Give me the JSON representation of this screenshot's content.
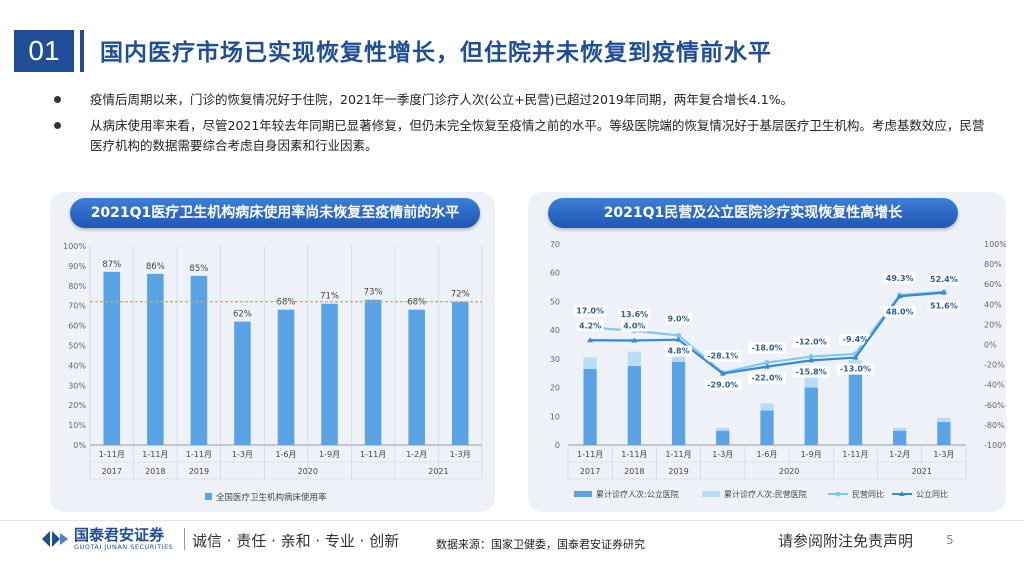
{
  "header": {
    "number": "01",
    "title": "国内医疗市场已实现恢复性增长，但住院并未恢复到疫情前水平"
  },
  "bullets": [
    "疫情后周期以来，门诊的恢复情况好于住院，2021年一季度门诊疗人次(公立+民营)已超过2019年同期，两年复合增长4.1%。",
    "从病床使用率来看，尽管2021年较去年同期已显著修复，但仍未完全恢复至疫情之前的水平。等级医院端的恢复情况好于基层医疗卫生机构。考虑基数效应，民营医疗机构的数据需要综合考虑自身因素和行业因素。"
  ],
  "colors": {
    "primary": "#1f4e96",
    "bar": "#5aa4e6",
    "bar_light": "#b8dcf4",
    "line_light": "#7ccbee",
    "line_dark": "#3a86d6",
    "ref_line": "#e8a33c"
  },
  "chart_data": [
    {
      "type": "bar",
      "title": "2021Q1医疗卫生机构病床使用率尚未恢复至疫情前的水平",
      "categories": [
        "1-11月",
        "1-11月",
        "1-11月",
        "1-3月",
        "1-6月",
        "1-9月",
        "1-11月",
        "1-2月",
        "1-3月"
      ],
      "year_groups": [
        {
          "label": "2017",
          "span": [
            0,
            0
          ]
        },
        {
          "label": "2018",
          "span": [
            1,
            1
          ]
        },
        {
          "label": "2019",
          "span": [
            2,
            2
          ]
        },
        {
          "label": "2020",
          "span": [
            3,
            6
          ]
        },
        {
          "label": "2021",
          "span": [
            7,
            8
          ]
        }
      ],
      "values": [
        87,
        86,
        85,
        62,
        68,
        71,
        73,
        68,
        72
      ],
      "value_labels": [
        "87%",
        "86%",
        "85%",
        "62%",
        "68%",
        "71%",
        "73%",
        "68%",
        "72%"
      ],
      "reference_line": 72,
      "ylim": [
        0,
        100
      ],
      "yticks": [
        "0%",
        "10%",
        "20%",
        "30%",
        "40%",
        "50%",
        "60%",
        "70%",
        "80%",
        "90%",
        "100%"
      ],
      "legend": [
        "全国医疗卫生机构病床使用率"
      ]
    },
    {
      "type": "bar",
      "title": "2021Q1民营及公立医院诊疗实现恢复性高增长",
      "categories": [
        "1-11月",
        "1-11月",
        "1-11月",
        "1-3月",
        "1-6月",
        "1-9月",
        "1-11月",
        "1-2月",
        "1-3月"
      ],
      "year_groups": [
        {
          "label": "2017",
          "span": [
            0,
            0
          ]
        },
        {
          "label": "2018",
          "span": [
            1,
            1
          ]
        },
        {
          "label": "2019",
          "span": [
            2,
            2
          ]
        },
        {
          "label": "2020",
          "span": [
            3,
            6
          ]
        },
        {
          "label": "2021",
          "span": [
            7,
            8
          ]
        }
      ],
      "series": [
        {
          "name": "累计诊疗人次:公立医院",
          "kind": "bar",
          "values": [
            26.5,
            27.5,
            29,
            5,
            12,
            20,
            25,
            5,
            8
          ]
        },
        {
          "name": "累计诊疗人次:民营医院",
          "kind": "bar_stack",
          "values": [
            4,
            5,
            5,
            1,
            2.5,
            3.5,
            4.5,
            1,
            1.5
          ]
        },
        {
          "name": "民营同比",
          "kind": "line",
          "axis": "right",
          "values": [
            17.0,
            13.6,
            9.0,
            -28.1,
            -18.0,
            -12.0,
            -9.4,
            49.3,
            52.4
          ],
          "labels": [
            "17.0%",
            "13.6%",
            "9.0%",
            "-28.1%",
            "-18.0%",
            "-12.0%",
            "-9.4%",
            "49.3%",
            "52.4%"
          ]
        },
        {
          "name": "公立同比",
          "kind": "line",
          "axis": "right",
          "values": [
            4.2,
            4.0,
            4.8,
            -29.0,
            -22.0,
            -15.8,
            -13.0,
            48.0,
            51.6
          ],
          "labels": [
            "4.2%",
            "4.0%",
            "4.8%",
            "-29.0%",
            "-22.0%",
            "-15.8%",
            "-13.0%",
            "48.0%",
            "51.6%"
          ]
        }
      ],
      "ylim": [
        0,
        70
      ],
      "yticks": [
        "0",
        "10",
        "20",
        "30",
        "40",
        "50",
        "60",
        "70"
      ],
      "y2lim": [
        -100,
        100
      ],
      "y2ticks": [
        "-100%",
        "-80%",
        "-60%",
        "-40%",
        "-20%",
        "0%",
        "20%",
        "40%",
        "60%",
        "80%",
        "100%"
      ],
      "legend": [
        "累计诊疗人次:公立医院",
        "累计诊疗人次:民营医院",
        "民营同比",
        "公立同比"
      ]
    }
  ],
  "footer": {
    "logo_cn": "国泰君安证券",
    "logo_en": "GUOTAI JUNAN SECURITIES",
    "slogan": "诚信 · 责任 · 亲和 · 专业 · 创新",
    "source": "数据来源：国家卫健委，国泰君安证券研究",
    "disclaimer": "请参阅附注免责声明",
    "page": "5"
  }
}
